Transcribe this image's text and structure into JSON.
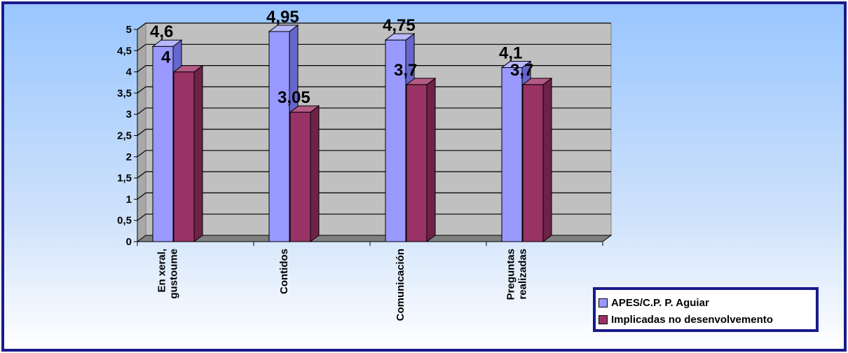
{
  "chart_data": {
    "type": "bar",
    "categories": [
      [
        "En xeral,",
        "gustoume"
      ],
      [
        "Contidos"
      ],
      [
        "Comunicación"
      ],
      [
        "Preguntas",
        "realizadas"
      ]
    ],
    "series": [
      {
        "name": "APES/C.P. P. Aguiar",
        "values": [
          4.6,
          4.95,
          4.75,
          4.1
        ],
        "labels": [
          "4,6",
          "4,95",
          "4,75",
          "4,1"
        ]
      },
      {
        "name": "Implicadas no desenvolvemento",
        "values": [
          4,
          3.05,
          3.7,
          3.7
        ],
        "labels": [
          "4",
          "3,05",
          "3,7",
          "3,7"
        ]
      }
    ],
    "yticks": [
      "0",
      "0,5",
      "1",
      "1,5",
      "2",
      "2,5",
      "3",
      "3,5",
      "4",
      "4,5",
      "5"
    ],
    "ylim": [
      0,
      5
    ],
    "grid": true,
    "legend_position": "bottom-right",
    "colors": {
      "series1_face": "#9999ff",
      "series1_side": "#6666cc",
      "series1_top": "#b8b8ff",
      "series2_face": "#993366",
      "series2_side": "#6e2248",
      "series2_top": "#b35a85",
      "wall": "#c0c0c0",
      "floor": "#808080",
      "border": "#1a1a8c"
    }
  }
}
